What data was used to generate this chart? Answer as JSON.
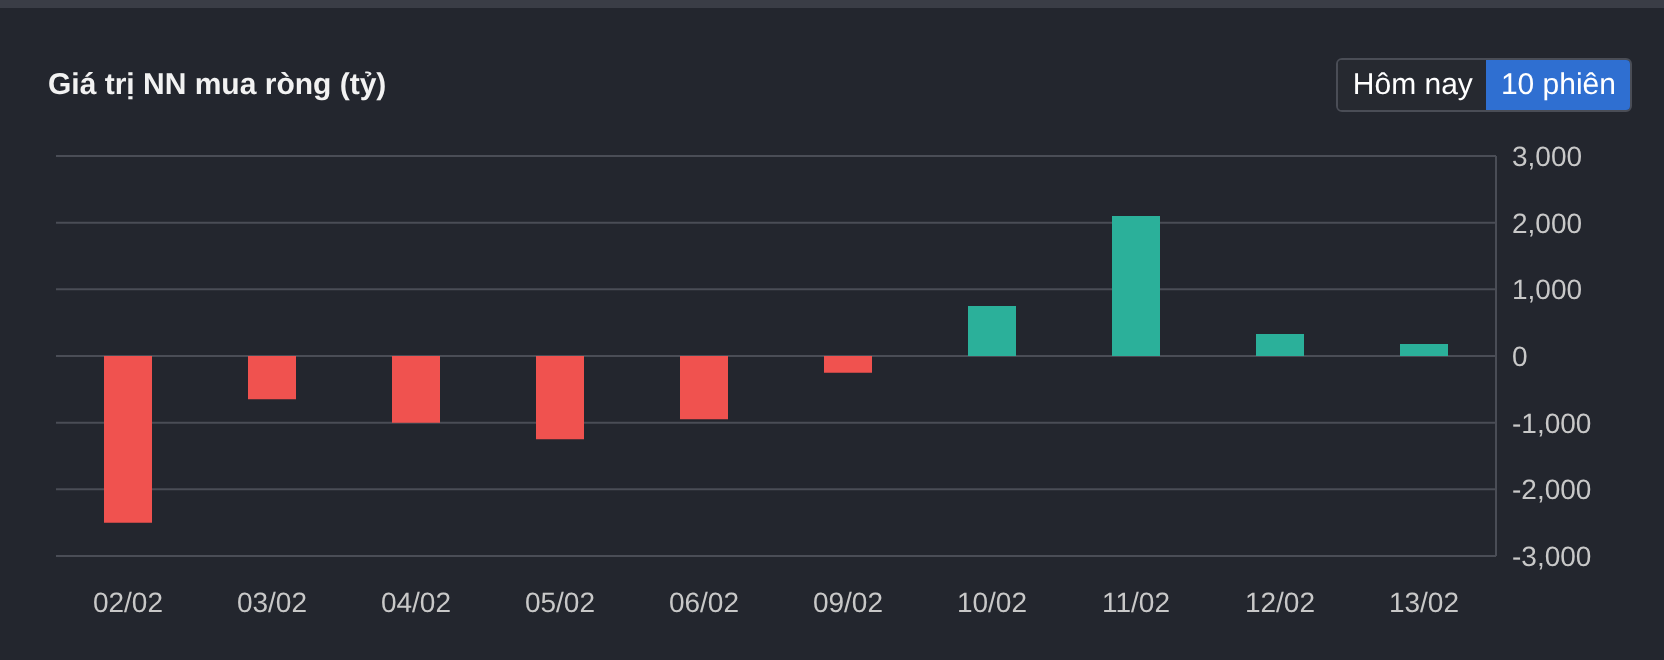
{
  "chart_data": {
    "type": "bar",
    "title": "Giá trị NN mua ròng (tỷ)",
    "categories": [
      "02/02",
      "03/02",
      "04/02",
      "05/02",
      "06/02",
      "09/02",
      "10/02",
      "11/02",
      "12/02",
      "13/02"
    ],
    "values": [
      -2500,
      -650,
      -1000,
      -1250,
      -950,
      -250,
      750,
      2100,
      330,
      180
    ],
    "colors": [
      "#f0524f",
      "#f0524f",
      "#f0524f",
      "#f0524f",
      "#f0524f",
      "#f0524f",
      "#2bb09a",
      "#2bb09a",
      "#2bb09a",
      "#2bb09a"
    ],
    "ylim": [
      -3000,
      3000
    ],
    "yticks": [
      {
        "value": -3000,
        "label": "-3,000"
      },
      {
        "value": -2000,
        "label": "-2,000"
      },
      {
        "value": -1000,
        "label": "-1,000"
      },
      0,
      {
        "value": 1000,
        "label": "1,000"
      },
      {
        "value": 2000,
        "label": "2,000"
      },
      {
        "value": 3000,
        "label": "3,000"
      }
    ],
    "grid": "y",
    "annotations": [
      "Hôm nay",
      "10 phiên"
    ]
  }
}
